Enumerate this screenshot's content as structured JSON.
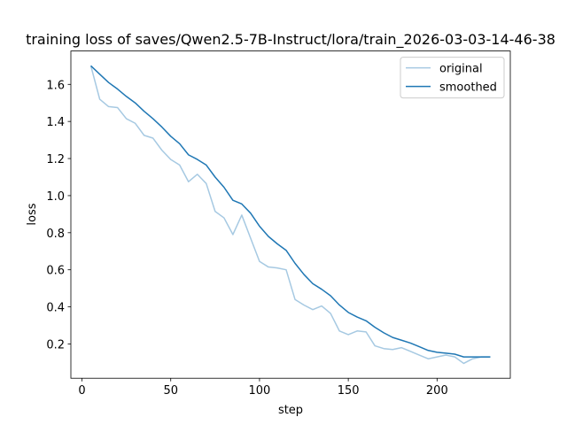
{
  "chart_data": {
    "type": "line",
    "title": "training loss of saves/Qwen2.5-7B-Instruct/lora/train_2026-03-03-14-46-38",
    "x_label": "step",
    "y_label": "loss",
    "x": [
      5,
      10,
      15,
      20,
      25,
      30,
      35,
      40,
      45,
      50,
      55,
      60,
      65,
      70,
      75,
      80,
      85,
      90,
      95,
      100,
      105,
      110,
      115,
      120,
      125,
      130,
      135,
      140,
      145,
      150,
      155,
      160,
      165,
      170,
      175,
      180,
      185,
      190,
      195,
      200,
      205,
      210,
      215,
      220,
      225,
      230
    ],
    "series": [
      {
        "name": "original",
        "color": "#a6c9e2",
        "values": [
          1.7,
          1.52,
          1.48,
          1.475,
          1.415,
          1.39,
          1.325,
          1.31,
          1.245,
          1.195,
          1.165,
          1.075,
          1.115,
          1.065,
          0.915,
          0.88,
          0.79,
          0.895,
          0.77,
          0.645,
          0.615,
          0.61,
          0.6,
          0.44,
          0.41,
          0.385,
          0.405,
          0.365,
          0.27,
          0.25,
          0.27,
          0.265,
          0.19,
          0.175,
          0.17,
          0.18,
          0.16,
          0.14,
          0.12,
          0.13,
          0.14,
          0.13,
          0.095,
          0.12,
          0.13,
          0.13
        ]
      },
      {
        "name": "smoothed",
        "color": "#1f77b4",
        "values": [
          1.7,
          1.655,
          1.61,
          1.575,
          1.535,
          1.5,
          1.455,
          1.415,
          1.37,
          1.32,
          1.28,
          1.22,
          1.195,
          1.165,
          1.1,
          1.045,
          0.975,
          0.955,
          0.905,
          0.835,
          0.78,
          0.74,
          0.705,
          0.635,
          0.575,
          0.525,
          0.495,
          0.46,
          0.41,
          0.37,
          0.345,
          0.325,
          0.29,
          0.26,
          0.235,
          0.22,
          0.205,
          0.185,
          0.165,
          0.155,
          0.15,
          0.145,
          0.13,
          0.13,
          0.13,
          0.13
        ]
      }
    ],
    "xlim": [
      -6.25,
      241.25
    ],
    "xticks": [
      0,
      50,
      100,
      150,
      200
    ],
    "ylim": [
      0.015,
      1.78
    ],
    "yticks": [
      0.2,
      0.4,
      0.6,
      0.8,
      {
        "value": 1,
        "label": "1.0"
      },
      1.2,
      1.4,
      1.6
    ],
    "grid": false,
    "legend": "upper right"
  }
}
